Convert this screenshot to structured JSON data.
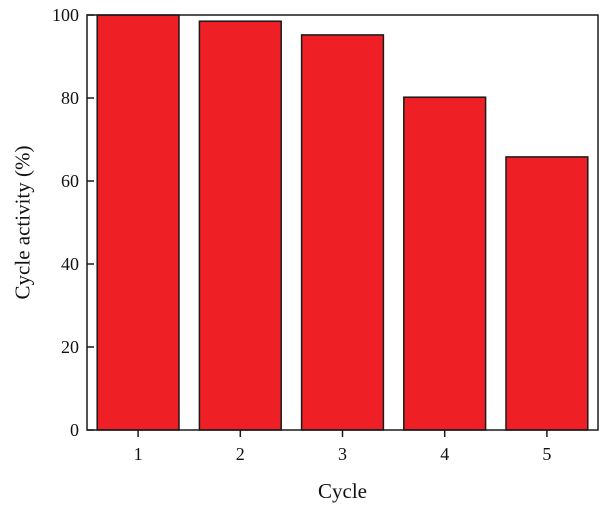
{
  "chart_data": {
    "type": "bar",
    "categories": [
      "1",
      "2",
      "3",
      "4",
      "5"
    ],
    "values": [
      100,
      98.5,
      95.2,
      80.2,
      65.8
    ],
    "xlabel": "Cycle",
    "ylabel": "Cycle activity (%)",
    "ylim": [
      0,
      100
    ],
    "yticks": [
      0,
      20,
      40,
      60,
      80,
      100
    ],
    "grid": false,
    "legend": "none",
    "colors": {
      "bar_fill": "#ee1f25",
      "bar_stroke": "#1a1a1a",
      "axis": "#1a1a1a"
    }
  }
}
